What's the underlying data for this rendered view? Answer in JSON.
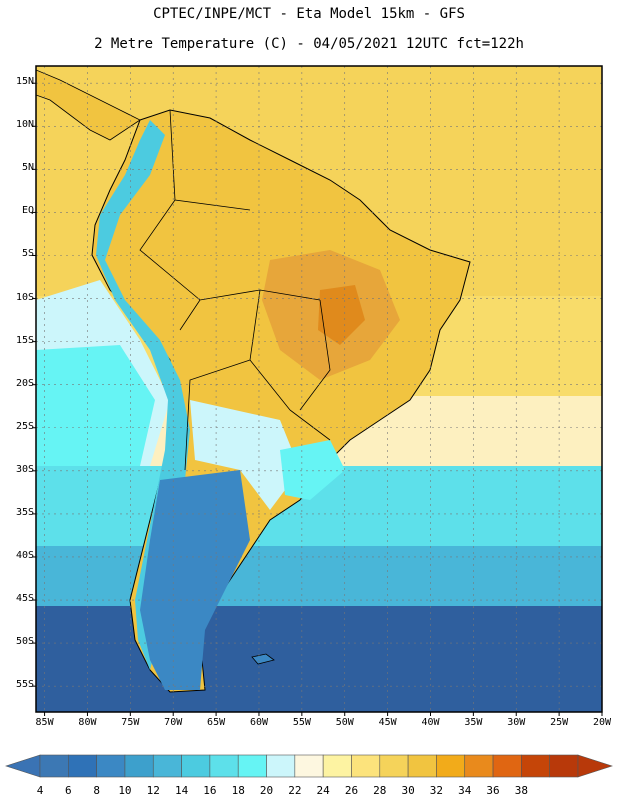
{
  "header": {
    "line1": "CPTEC/INPE/MCT -  Eta Model 15km - GFS",
    "line2": "2 Metre Temperature (C) - 04/05/2021 12UTC fct=122h"
  },
  "axes": {
    "lat_labels": [
      "15N",
      "10N",
      "5N",
      "EQ",
      "5S",
      "10S",
      "15S",
      "20S",
      "25S",
      "30S",
      "35S",
      "40S",
      "45S",
      "50S",
      "55S"
    ],
    "lat_values": [
      15,
      10,
      5,
      0,
      -5,
      -10,
      -15,
      -20,
      -25,
      -30,
      -35,
      -40,
      -45,
      -50,
      -55
    ],
    "lon_labels": [
      "85W",
      "80W",
      "75W",
      "70W",
      "65W",
      "60W",
      "55W",
      "50W",
      "45W",
      "40W",
      "35W",
      "30W",
      "25W",
      "20W"
    ],
    "lon_values": [
      -85,
      -80,
      -75,
      -70,
      -65,
      -60,
      -55,
      -50,
      -45,
      -40,
      -35,
      -30,
      -25,
      -20
    ],
    "lat_range": [
      -58,
      17
    ],
    "lon_range": [
      -86,
      -20
    ]
  },
  "colorbar": {
    "labels": [
      "4",
      "6",
      "8",
      "10",
      "12",
      "14",
      "16",
      "18",
      "20",
      "22",
      "24",
      "26",
      "28",
      "30",
      "32",
      "34",
      "36",
      "38"
    ],
    "colors": [
      "#3c78b4",
      "#2f72b7",
      "#3b88c4",
      "#3da0cc",
      "#49b6d8",
      "#4ccbe0",
      "#5de0ea",
      "#66f4f4",
      "#ccf6fb",
      "#fdf7e0",
      "#fdf3a2",
      "#fce37c",
      "#f5d35a",
      "#f1c440",
      "#f2ab1a",
      "#e98a1c",
      "#e06612",
      "#c54508",
      "#b8390a"
    ],
    "left_arrow_color": "#3a73b4",
    "right_arrow_color": "#b8390a"
  },
  "palette": {
    "land_hot": "#e7a63a",
    "land_warm": "#f1c440",
    "land_mild": "#fce37c",
    "ocean_warm": "#f5d35a",
    "ocean_cool": "#fdf3a2",
    "andes_cold": "#4ccbe0",
    "south_cold": "#2e5c9c"
  }
}
